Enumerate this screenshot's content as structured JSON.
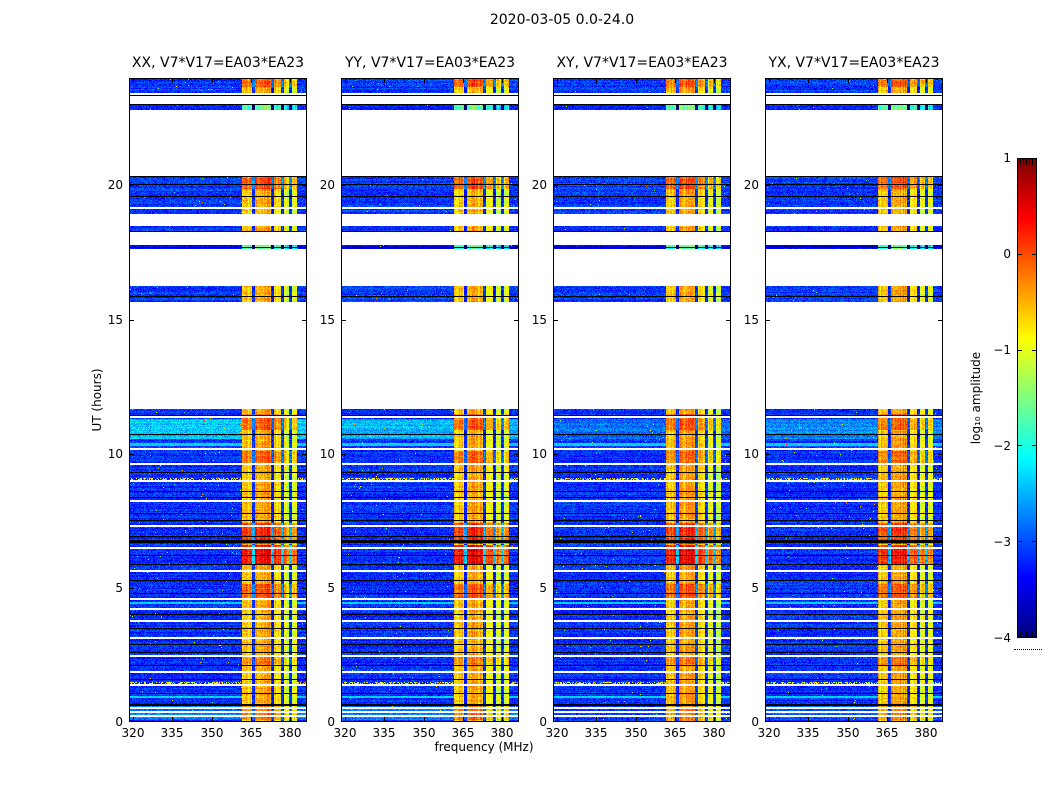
{
  "figure": {
    "title": "2020-03-05 0.0-24.0",
    "background": "#ffffff",
    "text_color": "#000000"
  },
  "chart_data": {
    "type": "heatmap",
    "title": "2020-03-05 0.0-24.0",
    "xlabel": "frequency (MHz)",
    "ylabel": "UT (hours)",
    "x_range_mhz": [
      318.5,
      386.9
    ],
    "y_range_hours": [
      0,
      24
    ],
    "x_ticks": [
      "320",
      "335",
      "350",
      "365",
      "380"
    ],
    "x_tick_values": [
      320,
      335,
      350,
      365,
      380
    ],
    "y_ticks": [
      "0",
      "5",
      "10",
      "15",
      "20"
    ],
    "y_tick_values": [
      0,
      5,
      10,
      15,
      20
    ],
    "grid": false,
    "colormap": "jet",
    "panels": [
      {
        "title": "XX, V7*V17=EA03*EA23",
        "pol": "xx",
        "bright_factor": 1.0,
        "hot_factor": 1.0,
        "seed": 11
      },
      {
        "title": "YY, V7*V17=EA03*EA23",
        "pol": "yy",
        "bright_factor": 0.85,
        "hot_factor": 1.05,
        "seed": 22
      },
      {
        "title": "XY, V7*V17=EA03*EA23",
        "pol": "xy",
        "bright_factor": 0.35,
        "hot_factor": 0.9,
        "seed": 33
      },
      {
        "title": "YX, V7*V17=EA03*EA23",
        "pol": "yx",
        "bright_factor": 0.6,
        "hot_factor": 0.85,
        "seed": 44
      }
    ],
    "colorbar": {
      "label": "log₁₀ amplitude",
      "ticks": [
        "1",
        "0",
        "−1",
        "−2",
        "−3",
        "−4"
      ],
      "tick_values": [
        1,
        0,
        -1,
        -2,
        -3,
        -4
      ],
      "vmin": -4,
      "vmax": 1
    },
    "time_segments": [
      {
        "t0": 23.45,
        "t1": 23.97,
        "base": -3.1,
        "rfi": "warm"
      },
      {
        "t0": 22.8,
        "t1": 22.98,
        "base": -3.25,
        "rfi": "dim"
      },
      {
        "t0": 18.95,
        "t1": 20.35,
        "base": -3.1,
        "rfi": "warm"
      },
      {
        "t0": 18.3,
        "t1": 18.5,
        "base": -3.15,
        "rfi": "warm"
      },
      {
        "t0": 17.62,
        "t1": 17.78,
        "base": -3.45,
        "rfi": "dim"
      },
      {
        "t0": 15.65,
        "t1": 16.25,
        "base": -3.1,
        "rfi": "warm"
      },
      {
        "t0": 0.0,
        "t1": 11.67,
        "base": -3.15,
        "rfi": "warm"
      }
    ],
    "rfi_band": {
      "f0": 361.6,
      "f1": 382.6,
      "gap_freqs": [
        366,
        373,
        377,
        379.9
      ],
      "subband_levels": [
        0.1,
        0.28,
        -0.05,
        -0.32
      ]
    },
    "hot_rows": [
      {
        "t0": 23.7,
        "t1": 23.97,
        "s": 0.5
      },
      {
        "t0": 19.9,
        "t1": 20.33,
        "s": 0.55
      },
      {
        "t0": 10.9,
        "t1": 11.5,
        "s": 0.45
      },
      {
        "t0": 9.6,
        "t1": 10.1,
        "s": 0.4
      },
      {
        "t0": 6.65,
        "t1": 7.45,
        "s": 0.8
      },
      {
        "t0": 5.9,
        "t1": 6.6,
        "s": 1.0
      },
      {
        "t0": 4.6,
        "t1": 5.15,
        "s": 0.5
      },
      {
        "t0": 2.1,
        "t1": 2.5,
        "s": 0.3
      },
      {
        "t0": 0.1,
        "t1": 0.6,
        "s": 0.35
      }
    ],
    "bright_bands": [
      {
        "t0": 10.55,
        "t1": 11.32,
        "amp": 0.75
      },
      {
        "t0": 0.1,
        "t1": 0.6,
        "amp": 0.4
      }
    ],
    "white_lines_t": [
      19.15,
      11.37,
      10.18,
      9.62,
      8.97,
      8.22,
      7.32,
      6.47,
      5.62,
      4.57,
      4.22,
      3.77,
      3.12,
      2.47,
      1.87,
      1.38,
      0.52,
      0.37,
      0.22
    ],
    "black_lines_t": [
      23.38,
      23.02,
      20.33,
      20.05,
      19.6,
      18.28,
      17.7,
      15.88,
      11.45,
      10.72,
      9.32,
      8.62,
      8.38,
      7.78,
      7.52,
      6.92,
      6.72,
      6.22,
      5.88,
      5.28,
      4.82,
      4.02,
      3.52,
      2.92,
      2.62,
      2.12,
      1.62,
      1.08,
      0.63
    ],
    "black_bands": [
      {
        "t0": 6.68,
        "t1": 6.8
      },
      {
        "t0": 0.6,
        "t1": 0.66
      }
    ],
    "speckle_rows_t": [
      9.05,
      1.45
    ],
    "cyan_rows_t": [
      10.35,
      4.45,
      0.95
    ]
  }
}
